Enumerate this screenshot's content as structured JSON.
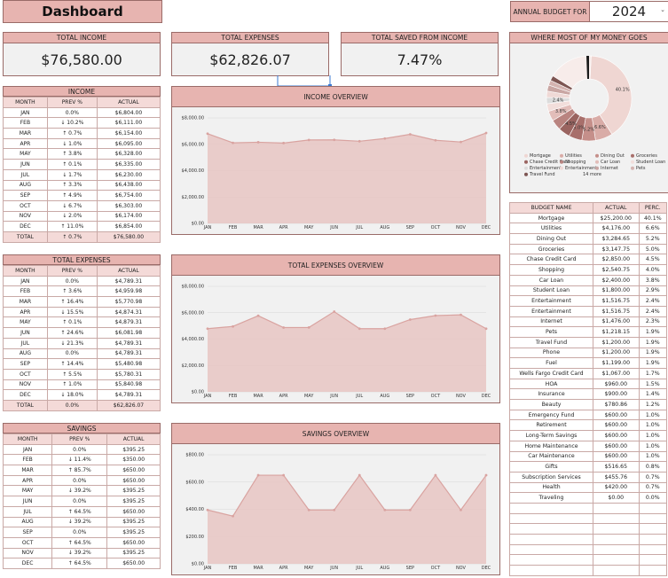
{
  "header": {
    "title": "Dashboard",
    "budget_label": "ANNUAL BUDGET FOR",
    "budget_year": "2024"
  },
  "stats": [
    {
      "label": "TOTAL INCOME",
      "value": "$76,580.00"
    },
    {
      "label": "TOTAL EXPENSES",
      "value": "$62,826.07"
    },
    {
      "label": "TOTAL SAVED FROM INCOME",
      "value": "7.47%"
    }
  ],
  "columns": {
    "month": "MONTH",
    "prev": "PREV %",
    "actual": "ACTUAL"
  },
  "income": {
    "title": "INCOME",
    "rows": [
      [
        "JAN",
        "0.0%",
        "$6,804.00"
      ],
      [
        "FEB",
        "↓ 10.2%",
        "$6,111.00"
      ],
      [
        "MAR",
        "↑ 0.7%",
        "$6,154.00"
      ],
      [
        "APR",
        "↓ 1.0%",
        "$6,095.00"
      ],
      [
        "MAY",
        "↑ 3.8%",
        "$6,328.00"
      ],
      [
        "JUN",
        "↑ 0.1%",
        "$6,335.00"
      ],
      [
        "JUL",
        "↓ 1.7%",
        "$6,230.00"
      ],
      [
        "AUG",
        "↑ 3.3%",
        "$6,438.00"
      ],
      [
        "SEP",
        "↑ 4.9%",
        "$6,754.00"
      ],
      [
        "OCT",
        "↓ 6.7%",
        "$6,303.00"
      ],
      [
        "NOV",
        "↓ 2.0%",
        "$6,174.00"
      ],
      [
        "DEC",
        "↑ 11.0%",
        "$6,854.00"
      ]
    ],
    "total": [
      "TOTAL",
      "↑ 0.7%",
      "$76,580.00"
    ]
  },
  "expenses": {
    "title": "TOTAL EXPENSES",
    "rows": [
      [
        "JAN",
        "0.0%",
        "$4,789.31"
      ],
      [
        "FEB",
        "↑ 3.6%",
        "$4,959.98"
      ],
      [
        "MAR",
        "↑ 16.4%",
        "$5,770.98"
      ],
      [
        "APR",
        "↓ 15.5%",
        "$4,874.31"
      ],
      [
        "MAY",
        "↑ 0.1%",
        "$4,879.31"
      ],
      [
        "JUN",
        "↑ 24.6%",
        "$6,081.98"
      ],
      [
        "JUL",
        "↓ 21.3%",
        "$4,789.31"
      ],
      [
        "AUG",
        "0.0%",
        "$4,789.31"
      ],
      [
        "SEP",
        "↑ 14.4%",
        "$5,480.98"
      ],
      [
        "OCT",
        "↑ 5.5%",
        "$5,780.31"
      ],
      [
        "NOV",
        "↑ 1.0%",
        "$5,840.98"
      ],
      [
        "DEC",
        "↓ 18.0%",
        "$4,789.31"
      ]
    ],
    "total": [
      "TOTAL",
      "0.0%",
      "$62,826.07"
    ]
  },
  "savings": {
    "title": "SAVINGS",
    "rows": [
      [
        "JAN",
        "0.0%",
        "$395.25"
      ],
      [
        "FEB",
        "↓ 11.4%",
        "$350.00"
      ],
      [
        "MAR",
        "↑ 85.7%",
        "$650.00"
      ],
      [
        "APR",
        "0.0%",
        "$650.00"
      ],
      [
        "MAY",
        "↓ 39.2%",
        "$395.25"
      ],
      [
        "JUN",
        "0.0%",
        "$395.25"
      ],
      [
        "JUL",
        "↑ 64.5%",
        "$650.00"
      ],
      [
        "AUG",
        "↓ 39.2%",
        "$395.25"
      ],
      [
        "SEP",
        "0.0%",
        "$395.25"
      ],
      [
        "OCT",
        "↑ 64.5%",
        "$650.00"
      ],
      [
        "NOV",
        "↓ 39.2%",
        "$395.25"
      ],
      [
        "DEC",
        "↑ 64.5%",
        "$650.00"
      ]
    ]
  },
  "chart_data": [
    {
      "type": "area",
      "title": "INCOME OVERVIEW",
      "x": [
        "JAN",
        "FEB",
        "MAR",
        "APR",
        "MAY",
        "JUN",
        "JUL",
        "AUG",
        "SEP",
        "OCT",
        "NOV",
        "DEC"
      ],
      "values": [
        6804,
        6111,
        6154,
        6095,
        6328,
        6335,
        6230,
        6438,
        6754,
        6303,
        6174,
        6854
      ],
      "yticks": [
        "$0.00",
        "$2,000.00",
        "$4,000.00",
        "$6,000.00",
        "$8,000.00"
      ],
      "ylim": [
        0,
        8000
      ]
    },
    {
      "type": "area",
      "title": "TOTAL EXPENSES OVERVIEW",
      "x": [
        "JAN",
        "FEB",
        "MAR",
        "APR",
        "MAY",
        "JUN",
        "JUL",
        "AUG",
        "SEP",
        "OCT",
        "NOV",
        "DEC"
      ],
      "values": [
        4789.31,
        4959.98,
        5770.98,
        4874.31,
        4879.31,
        6081.98,
        4789.31,
        4789.31,
        5480.98,
        5780.31,
        5840.98,
        4789.31
      ],
      "yticks": [
        "$0.00",
        "$2,000.00",
        "$4,000.00",
        "$6,000.00",
        "$8,000.00"
      ],
      "ylim": [
        0,
        8000
      ]
    },
    {
      "type": "area",
      "title": "SAVINGS OVERVIEW",
      "x": [
        "JAN",
        "FEB",
        "MAR",
        "APR",
        "MAY",
        "JUN",
        "JUL",
        "AUG",
        "SEP",
        "OCT",
        "NOV",
        "DEC"
      ],
      "values": [
        395.25,
        350,
        650,
        650,
        395.25,
        395.25,
        650,
        395.25,
        395.25,
        650,
        395.25,
        650
      ],
      "yticks": [
        "$0.00",
        "$200.00",
        "$400.00",
        "$600.00",
        "$800.00"
      ],
      "ylim": [
        0,
        800
      ]
    },
    {
      "type": "pie",
      "title": "WHERE MOST OF MY MONEY GOES",
      "slices": [
        {
          "name": "Mortgage",
          "value": 40.1,
          "color": "#efd6d2",
          "label": "40.1%"
        },
        {
          "name": "Utilities",
          "value": 6.6,
          "color": "#d9aca7",
          "label": "6.6%"
        },
        {
          "name": "Dining Out",
          "value": 5.2,
          "color": "#c58f8a",
          "label": "5.2%"
        },
        {
          "name": "Groceries",
          "value": 5.0,
          "color": "#a86f6b",
          "label": "5.0%"
        },
        {
          "name": "Chase Credit Card",
          "value": 4.5,
          "color": "#9a6460",
          "label": "4.5%"
        },
        {
          "name": "Shopping",
          "value": 4.0,
          "color": "#b98480",
          "label": ""
        },
        {
          "name": "Car Loan",
          "value": 3.8,
          "color": "#e2bdb9",
          "label": "3.8%"
        },
        {
          "name": "Student Loan",
          "value": 2.9,
          "color": "#f2dedb",
          "label": ""
        },
        {
          "name": "Entertainment",
          "value": 2.4,
          "color": "#dcdcdc",
          "label": "2.4%"
        },
        {
          "name": "Entertainment",
          "value": 2.4,
          "color": "#efd9d6",
          "label": ""
        },
        {
          "name": "Internet",
          "value": 2.3,
          "color": "#c9a6a3",
          "label": ""
        },
        {
          "name": "Pets",
          "value": 1.9,
          "color": "#d4b3b0",
          "label": ""
        },
        {
          "name": "Travel Fund",
          "value": 1.9,
          "color": "#7d5552",
          "label": ""
        },
        {
          "name": "14 more",
          "value": 16.9,
          "color": "#f7ecea",
          "label": ""
        }
      ],
      "extra_colors": [
        "#ffffff",
        "#1b1b1b",
        "#999999",
        "#e8e8e8"
      ],
      "legend_more": "14 more"
    }
  ],
  "budget": {
    "headers": [
      "BUDGET NAME",
      "ACTUAL",
      "PERC."
    ],
    "rows": [
      [
        "Mortgage",
        "$25,200.00",
        "40.1%"
      ],
      [
        "Utilities",
        "$4,176.00",
        "6.6%"
      ],
      [
        "Dining Out",
        "$3,284.65",
        "5.2%"
      ],
      [
        "Groceries",
        "$3,147.75",
        "5.0%"
      ],
      [
        "Chase Credit Card",
        "$2,850.00",
        "4.5%"
      ],
      [
        "Shopping",
        "$2,540.75",
        "4.0%"
      ],
      [
        "Car Loan",
        "$2,400.00",
        "3.8%"
      ],
      [
        "Student Loan",
        "$1,800.00",
        "2.9%"
      ],
      [
        "Entertainment",
        "$1,516.75",
        "2.4%"
      ],
      [
        "Entertainment",
        "$1,516.75",
        "2.4%"
      ],
      [
        "Internet",
        "$1,476.00",
        "2.3%"
      ],
      [
        "Pets",
        "$1,218.15",
        "1.9%"
      ],
      [
        "Travel Fund",
        "$1,200.00",
        "1.9%"
      ],
      [
        "Phone",
        "$1,200.00",
        "1.9%"
      ],
      [
        "Fuel",
        "$1,199.00",
        "1.9%"
      ],
      [
        "Wells Fargo Credit Card",
        "$1,067.00",
        "1.7%"
      ],
      [
        "HOA",
        "$960.00",
        "1.5%"
      ],
      [
        "Insurance",
        "$900.00",
        "1.4%"
      ],
      [
        "Beauty",
        "$780.86",
        "1.2%"
      ],
      [
        "Emergency Fund",
        "$600.00",
        "1.0%"
      ],
      [
        "Retirement",
        "$600.00",
        "1.0%"
      ],
      [
        "Long-Term Savings",
        "$600.00",
        "1.0%"
      ],
      [
        "Home Maintenance",
        "$600.00",
        "1.0%"
      ],
      [
        "Car Maintenance",
        "$600.00",
        "1.0%"
      ],
      [
        "Gifts",
        "$516.65",
        "0.8%"
      ],
      [
        "Subscription Services",
        "$455.76",
        "0.7%"
      ],
      [
        "Health",
        "$420.00",
        "0.7%"
      ],
      [
        "Traveling",
        "$0.00",
        "0.0%"
      ]
    ],
    "empty_rows": 7
  },
  "colors": {
    "accent": "#e7b4b0",
    "accent_light": "#f4dad8",
    "border": "#9a6b68",
    "line": "#d9a3a0",
    "fill": "#e8c6c3"
  }
}
